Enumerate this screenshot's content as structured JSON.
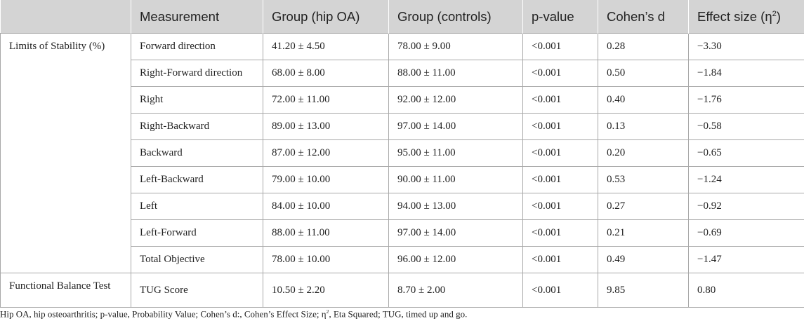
{
  "table": {
    "headers": [
      "",
      "Measurement",
      "Group (hip OA)",
      "Group (controls)",
      "p-value",
      "Cohen’s d",
      "Effect size (η2)"
    ],
    "groups": [
      {
        "label": "Limits of Stability (%)",
        "rows": [
          {
            "measurement": "Forward direction",
            "hip_oa": "41.20 ± 4.50",
            "controls": "78.00 ± 9.00",
            "p_value": "<0.001",
            "cohens_d": "0.28",
            "effect_size": "−3.30"
          },
          {
            "measurement": "Right-Forward direction",
            "hip_oa": "68.00 ± 8.00",
            "controls": "88.00 ± 11.00",
            "p_value": "<0.001",
            "cohens_d": "0.50",
            "effect_size": "−1.84"
          },
          {
            "measurement": "Right",
            "hip_oa": "72.00 ± 11.00",
            "controls": "92.00 ± 12.00",
            "p_value": "<0.001",
            "cohens_d": "0.40",
            "effect_size": "−1.76"
          },
          {
            "measurement": "Right-Backward",
            "hip_oa": "89.00 ± 13.00",
            "controls": "97.00 ± 14.00",
            "p_value": "<0.001",
            "cohens_d": "0.13",
            "effect_size": "−0.58"
          },
          {
            "measurement": "Backward",
            "hip_oa": "87.00 ± 12.00",
            "controls": "95.00 ± 11.00",
            "p_value": "<0.001",
            "cohens_d": "0.20",
            "effect_size": "−0.65"
          },
          {
            "measurement": "Left-Backward",
            "hip_oa": "79.00 ± 10.00",
            "controls": "90.00 ± 11.00",
            "p_value": "<0.001",
            "cohens_d": "0.53",
            "effect_size": "−1.24"
          },
          {
            "measurement": "Left",
            "hip_oa": "84.00 ± 10.00",
            "controls": "94.00 ± 13.00",
            "p_value": "<0.001",
            "cohens_d": "0.27",
            "effect_size": "−0.92"
          },
          {
            "measurement": "Left-Forward",
            "hip_oa": "88.00 ± 11.00",
            "controls": "97.00 ± 14.00",
            "p_value": "<0.001",
            "cohens_d": "0.21",
            "effect_size": "−0.69"
          },
          {
            "measurement": "Total Objective",
            "hip_oa": "78.00 ± 10.00",
            "controls": "96.00 ± 12.00",
            "p_value": "<0.001",
            "cohens_d": "0.49",
            "effect_size": "−1.47"
          }
        ]
      },
      {
        "label": "Functional Balance Test",
        "rows": [
          {
            "measurement": "TUG Score",
            "hip_oa": "10.50 ± 2.20",
            "controls": "8.70 ± 2.00",
            "p_value": "<0.001",
            "cohens_d": "9.85",
            "effect_size": "0.80"
          }
        ]
      }
    ]
  },
  "footnote": "Hip OA, hip osteoarthritis; p-value, Probability Value; Cohen’s d:, Cohen’s Effect Size; η2, Eta Squared; TUG, timed up and go."
}
